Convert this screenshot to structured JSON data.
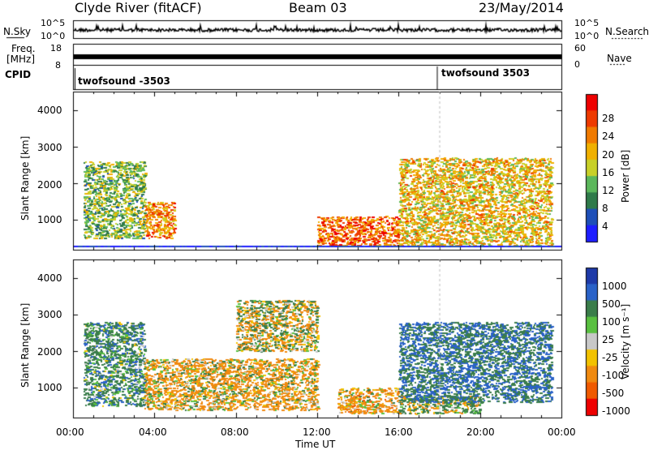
{
  "header": {
    "station": "Clyde River (fitACF)",
    "beam": "Beam 03",
    "date": "23/May/2014"
  },
  "strips": {
    "nsky_label": "N.Sky",
    "nsky_tick_top": "10^5",
    "nsky_tick_bottom": "10^0",
    "nsearch_label": "N.Search",
    "nsearch_tick_top": "10^5",
    "nsearch_tick_bottom": "10^0",
    "freq_label_1": "Freq.",
    "freq_label_2": "[MHz]",
    "freq_tick_top": "18",
    "freq_tick_bottom": "8",
    "nave_label": "Nave",
    "nave_tick_top": "60",
    "nave_tick_bottom": "0",
    "cpid_label": "CPID",
    "cpid_1": "twofsound -3503",
    "cpid_2": "twofsound 3503"
  },
  "axes": {
    "ylabel": "Slant Range [km]",
    "xlabel": "Time UT",
    "y_ticks": [
      "1000",
      "2000",
      "3000",
      "4000"
    ],
    "x_ticks": [
      "00:00",
      "04:00",
      "08:00",
      "12:00",
      "16:00",
      "20:00",
      "00:00"
    ]
  },
  "colorbars": {
    "power": {
      "label": "Power [dB]",
      "ticks": [
        "4",
        "8",
        "12",
        "16",
        "20",
        "24",
        "28"
      ],
      "colors": [
        "#1e1eff",
        "#1e4fb8",
        "#2f7a4a",
        "#5bb75b",
        "#c8d028",
        "#f0b000",
        "#f07a00",
        "#ee3a00",
        "#ee0000"
      ]
    },
    "velocity": {
      "label": "Velocity [m s⁻¹]",
      "ticks": [
        "1000",
        "500",
        "100",
        "25",
        "-25",
        "-100",
        "-500",
        "-1000"
      ],
      "colors": [
        "#1e3aa8",
        "#2a62c8",
        "#3a7d4a",
        "#59c040",
        "#c8c8c8",
        "#f2c200",
        "#f08a10",
        "#f05a00",
        "#ee0000"
      ]
    }
  },
  "chart_data": [
    {
      "type": "heatmap",
      "title": "Power",
      "xlabel": "Time UT",
      "ylabel": "Slant Range [km]",
      "xlim": [
        "00:00",
        "24:00"
      ],
      "ylim": [
        180,
        4500
      ],
      "colorbar_range": [
        0,
        30
      ],
      "colorbar_unit": "dB",
      "features": [
        {
          "time_range": [
            "00:30",
            "03:30"
          ],
          "range_km": [
            500,
            2600
          ],
          "typical_dB": 12
        },
        {
          "time_range": [
            "03:30",
            "05:00"
          ],
          "range_km": [
            500,
            1500
          ],
          "typical_dB": 22
        },
        {
          "time_range": [
            "12:00",
            "16:00"
          ],
          "range_km": [
            300,
            1100
          ],
          "typical_dB": 24
        },
        {
          "time_range": [
            "16:00",
            "23:30"
          ],
          "range_km": [
            300,
            2700
          ],
          "typical_dB": 18
        }
      ]
    },
    {
      "type": "heatmap",
      "title": "Velocity",
      "xlabel": "Time UT",
      "ylabel": "Slant Range [km]",
      "xlim": [
        "00:00",
        "24:00"
      ],
      "ylim": [
        180,
        4500
      ],
      "colorbar_range": [
        -1000,
        1000
      ],
      "colorbar_unit": "m s^-1",
      "features": [
        {
          "time_range": [
            "00:30",
            "03:30"
          ],
          "range_km": [
            500,
            2800
          ],
          "typical_ms": 300
        },
        {
          "time_range": [
            "03:30",
            "12:00"
          ],
          "range_km": [
            400,
            1800
          ],
          "typical_ms": -150
        },
        {
          "time_range": [
            "08:00",
            "12:00"
          ],
          "range_km": [
            2000,
            3400
          ],
          "typical_ms": 0
        },
        {
          "time_range": [
            "13:00",
            "16:00"
          ],
          "range_km": [
            300,
            1000
          ],
          "typical_ms": -200
        },
        {
          "time_range": [
            "16:00",
            "20:00"
          ],
          "range_km": [
            300,
            800
          ],
          "typical_ms": 80
        },
        {
          "time_range": [
            "16:00",
            "23:30"
          ],
          "range_km": [
            600,
            2800
          ],
          "typical_ms": 500
        }
      ]
    }
  ]
}
